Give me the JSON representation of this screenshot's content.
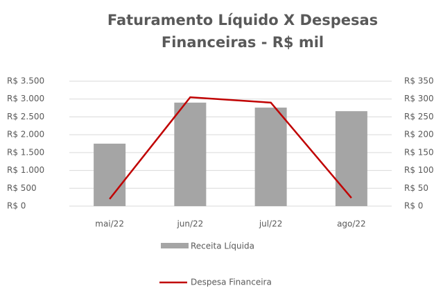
{
  "chart_data": {
    "type": "bar_line",
    "title": [
      "Faturamento Líquido X Despesas",
      "Financeiras - R$ mil"
    ],
    "categories": [
      "mai/22",
      "jun/22",
      "jul/22",
      "ago/22"
    ],
    "series": [
      {
        "name": "Receita Líquida",
        "color": "#a5a5a5",
        "type": "bar",
        "values": [
          1750,
          2900,
          2760,
          2660
        ]
      },
      {
        "name": "Despesa Financeira",
        "color": "#c00000",
        "type": "line",
        "axis": "y2",
        "values": [
          20,
          305,
          290,
          23
        ]
      }
    ],
    "ylim": [
      0,
      3500
    ],
    "yticks": [
      {
        "value": 0,
        "label": "R$ 0"
      },
      {
        "value": 500,
        "label": "R$ 500"
      },
      {
        "value": 1000,
        "label": "R$ 1.000"
      },
      {
        "value": 1500,
        "label": "R$ 1.500"
      },
      {
        "value": 2000,
        "label": "R$ 2.000"
      },
      {
        "value": 2500,
        "label": "R$ 2.500"
      },
      {
        "value": 3000,
        "label": "R$ 3.000"
      },
      {
        "value": 3500,
        "label": "R$ 3.500"
      }
    ],
    "y2lim": [
      0,
      350
    ],
    "y2ticks": [
      {
        "value": 0,
        "label": "R$ 0"
      },
      {
        "value": 50,
        "label": "R$ 50"
      },
      {
        "value": 100,
        "label": "R$ 100"
      },
      {
        "value": 150,
        "label": "R$ 150"
      },
      {
        "value": 200,
        "label": "R$ 200"
      },
      {
        "value": 250,
        "label": "R$ 250"
      },
      {
        "value": 300,
        "label": "R$ 300"
      },
      {
        "value": 350,
        "label": "R$ 350"
      }
    ],
    "grid": true,
    "legend": "bottom"
  }
}
